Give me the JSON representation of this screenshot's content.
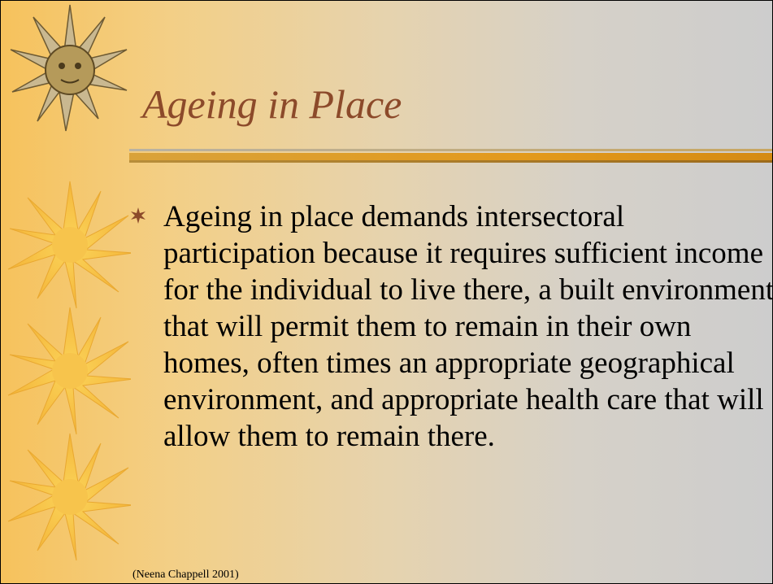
{
  "slide": {
    "title": "Ageing in Place",
    "bullets": [
      "Ageing in place demands intersectoral participation because it requires sufficient income for the individual to live there, a built environment that will permit them to remain in their own homes, often times an appropriate geographical environment, and appropriate health care that will allow them to remain there."
    ],
    "citation": "(Neena Chappell 2001)"
  }
}
